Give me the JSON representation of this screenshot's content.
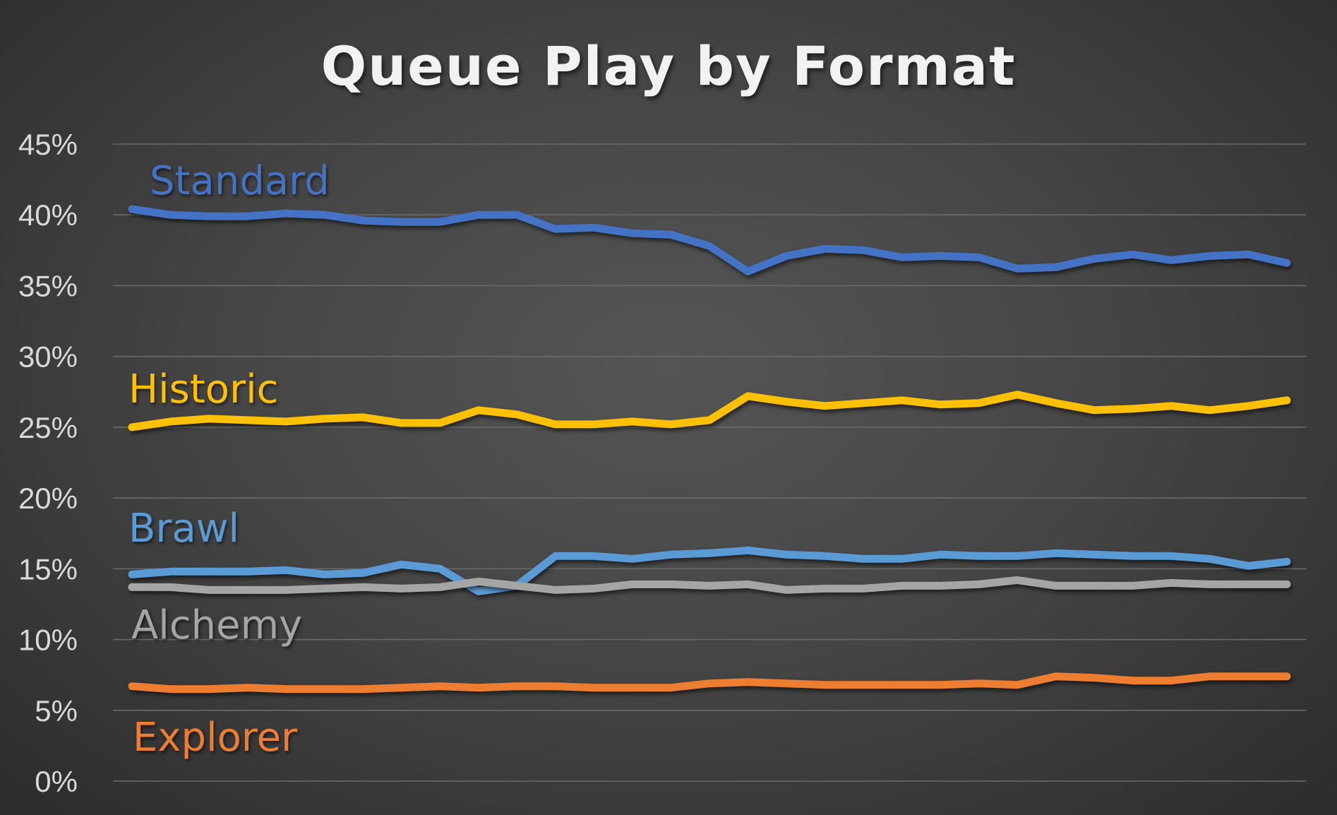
{
  "chart_data": {
    "type": "line",
    "title": "Queue Play by Format",
    "xlabel": "",
    "ylabel": "",
    "ylim": [
      0,
      45
    ],
    "y_ticks": [
      "0%",
      "5%",
      "10%",
      "15%",
      "20%",
      "25%",
      "30%",
      "35%",
      "40%",
      "45%"
    ],
    "y_tick_values": [
      0,
      5,
      10,
      15,
      20,
      25,
      30,
      35,
      40,
      45
    ],
    "grid": true,
    "legend": "inline labels",
    "x": [
      1,
      2,
      3,
      4,
      5,
      6,
      7,
      8,
      9,
      10,
      11,
      12,
      13,
      14,
      15,
      16,
      17,
      18,
      19,
      20,
      21,
      22,
      23,
      24,
      25,
      26,
      27,
      28,
      29,
      30,
      31
    ],
    "series": [
      {
        "name": "Standard",
        "color": "#4472C4",
        "values": [
          40.4,
          40.0,
          39.9,
          39.9,
          40.1,
          40.0,
          39.6,
          39.5,
          39.5,
          40.0,
          40.0,
          39.0,
          39.1,
          38.7,
          38.6,
          37.8,
          36.0,
          37.1,
          37.6,
          37.5,
          37.0,
          37.1,
          37.0,
          36.2,
          36.3,
          36.9,
          37.2,
          36.8,
          37.1,
          37.2,
          36.6
        ]
      },
      {
        "name": "Historic",
        "color": "#FFC000",
        "values": [
          25.0,
          25.4,
          25.6,
          25.5,
          25.4,
          25.6,
          25.7,
          25.3,
          25.3,
          26.2,
          25.9,
          25.2,
          25.2,
          25.4,
          25.2,
          25.5,
          27.2,
          26.8,
          26.5,
          26.7,
          26.9,
          26.6,
          26.7,
          27.3,
          26.7,
          26.2,
          26.3,
          26.5,
          26.2,
          26.5,
          26.9
        ]
      },
      {
        "name": "Brawl",
        "color": "#5B9BD5",
        "values": [
          14.6,
          14.8,
          14.8,
          14.8,
          14.9,
          14.6,
          14.7,
          15.3,
          15.0,
          13.4,
          13.8,
          15.9,
          15.9,
          15.7,
          16.0,
          16.1,
          16.3,
          16.0,
          15.9,
          15.7,
          15.7,
          16.0,
          15.9,
          15.9,
          16.1,
          16.0,
          15.9,
          15.9,
          15.7,
          15.2,
          15.5
        ]
      },
      {
        "name": "Alchemy",
        "color": "#A5A5A5",
        "values": [
          13.7,
          13.7,
          13.5,
          13.5,
          13.5,
          13.6,
          13.7,
          13.6,
          13.7,
          14.1,
          13.8,
          13.5,
          13.6,
          13.9,
          13.9,
          13.8,
          13.9,
          13.5,
          13.6,
          13.6,
          13.8,
          13.8,
          13.9,
          14.2,
          13.8,
          13.8,
          13.8,
          14.0,
          13.9,
          13.9,
          13.9
        ]
      },
      {
        "name": "Explorer",
        "color": "#ED7D31",
        "values": [
          6.7,
          6.5,
          6.5,
          6.6,
          6.5,
          6.5,
          6.5,
          6.6,
          6.7,
          6.6,
          6.7,
          6.7,
          6.6,
          6.6,
          6.6,
          6.9,
          7.0,
          6.9,
          6.8,
          6.8,
          6.8,
          6.8,
          6.9,
          6.8,
          7.4,
          7.3,
          7.1,
          7.1,
          7.4,
          7.4,
          7.4
        ]
      }
    ]
  }
}
